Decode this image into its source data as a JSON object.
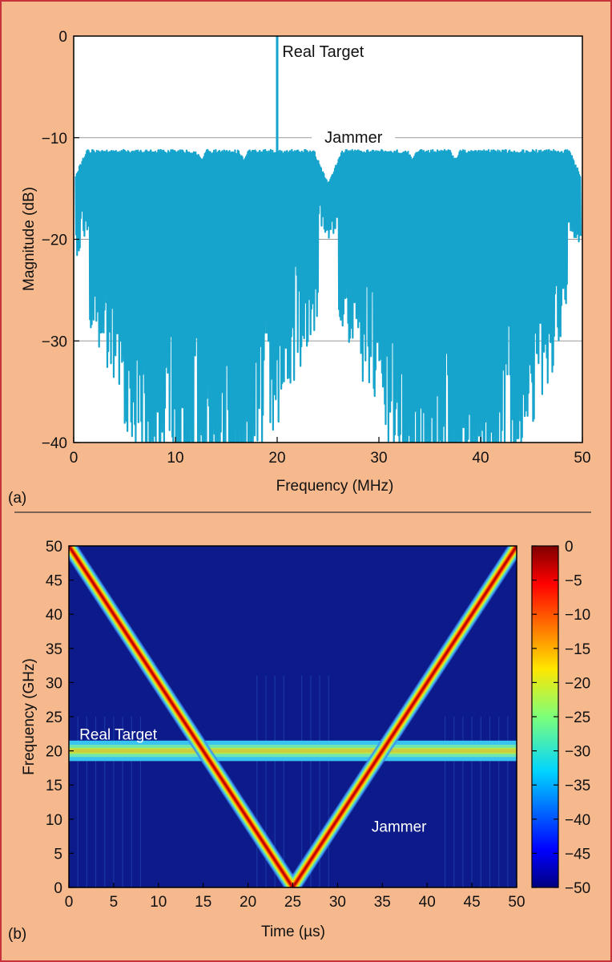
{
  "colors": {
    "background": "#f6b98e",
    "border": "#c8323c",
    "spectrum": "#16a4cc",
    "plot_bg": "#ffffff",
    "heatmap_bg": "#0d1a8a"
  },
  "chart_data": [
    {
      "panel": "(a)",
      "type": "line",
      "xlabel": "Frequency (MHz)",
      "ylabel": "Magnitude (dB)",
      "xlim": [
        0,
        50
      ],
      "ylim": [
        -40,
        0
      ],
      "xticks": [
        "0",
        "10",
        "20",
        "30",
        "40",
        "50"
      ],
      "yticks": [
        "0",
        "−10",
        "−20",
        "−30",
        "−40"
      ],
      "grid": true,
      "series": [
        {
          "description_values": {
            "band_start": 0.2,
            "band_end": 49.8,
            "band_top_db": -11.2,
            "notch_center": 25,
            "notch_floor_db": -14.5,
            "edge_db": -14
          }
        },
        {
          "name": "Real Target",
          "x": [
            20
          ],
          "y": [
            0
          ]
        }
      ],
      "annotations": [
        {
          "text": "Real Target",
          "x": 20.5,
          "y": -1.5
        },
        {
          "text": "Jammer",
          "x": 27.5,
          "y": -10
        }
      ]
    },
    {
      "panel": "(b)",
      "type": "heatmap",
      "xlabel": "Time (µs)",
      "ylabel": "Frequency (GHz)",
      "xlim": [
        0,
        50
      ],
      "ylim": [
        0,
        50
      ],
      "xticks": [
        "0",
        "5",
        "10",
        "15",
        "20",
        "25",
        "30",
        "35",
        "40",
        "45",
        "50"
      ],
      "yticks": [
        "0",
        "5",
        "10",
        "15",
        "20",
        "25",
        "30",
        "35",
        "40",
        "45",
        "50"
      ],
      "colorbar": {
        "range": [
          -50,
          0
        ],
        "ticks": [
          "0",
          "−5",
          "−10",
          "−15",
          "−20",
          "−25",
          "−30",
          "−35",
          "−40",
          "−45",
          "−50"
        ]
      },
      "traces": [
        {
          "name": "Jammer",
          "x": [
            0,
            25,
            50
          ],
          "y": [
            50,
            0,
            50
          ]
        },
        {
          "name": "Real Target",
          "x": [
            0,
            50
          ],
          "y": [
            20,
            20
          ]
        }
      ],
      "annotations": [
        {
          "text": "Real Target",
          "x": 1,
          "y": 22.5
        },
        {
          "text": "Jammer",
          "x": 33.8,
          "y": 9
        }
      ]
    }
  ]
}
